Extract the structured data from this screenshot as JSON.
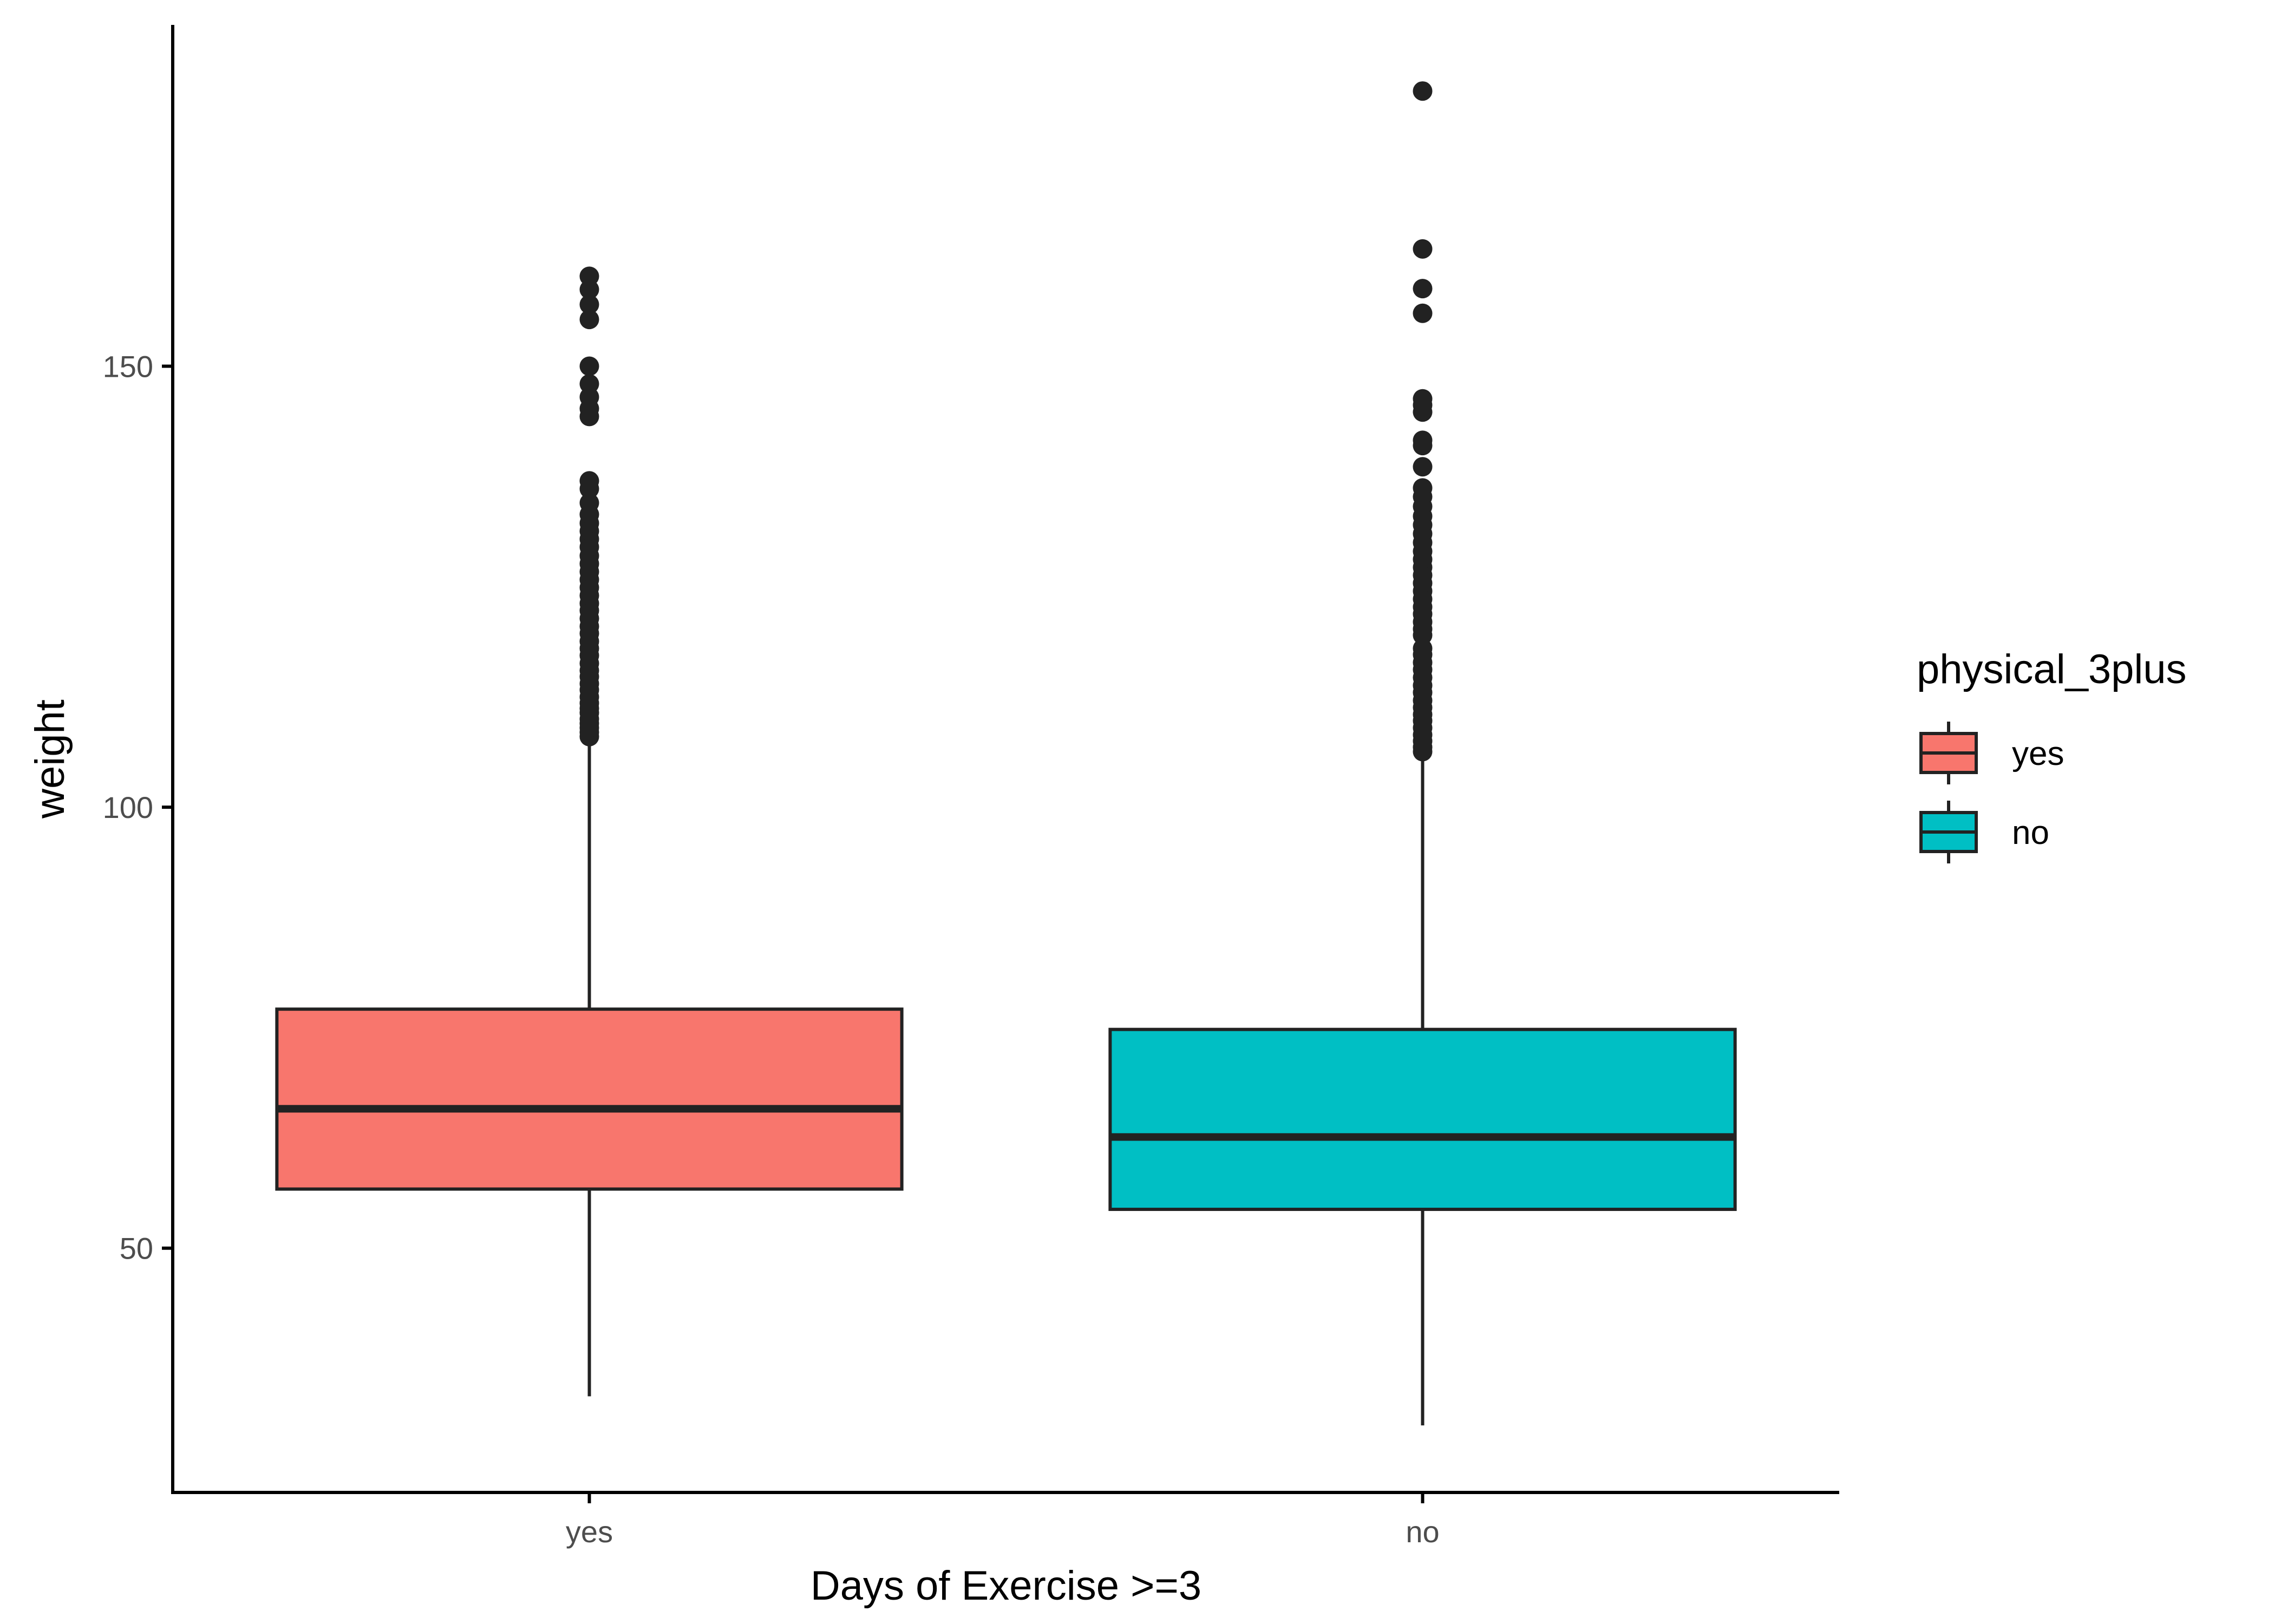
{
  "chart_data": {
    "type": "boxplot",
    "title": "",
    "xlabel": "Days of Exercise >=3",
    "ylabel": "weight",
    "ylim": [
      22.3,
      188.7
    ],
    "yticks": [
      50,
      100,
      150
    ],
    "grid": false,
    "legend_position": "right",
    "categories": [
      "yes",
      "no"
    ],
    "colors": {
      "yes": "#F8766D",
      "no": "#00BFC4",
      "outline": "#222222"
    },
    "legend": {
      "title": "physical_3plus",
      "items": [
        {
          "label": "yes",
          "color": "#F8766D"
        },
        {
          "label": "no",
          "color": "#00BFC4"
        }
      ]
    },
    "series": [
      {
        "name": "yes",
        "whisker_low": 33.2,
        "q1": 56.7,
        "median": 65.8,
        "q3": 77.1,
        "whisker_high": 107.5,
        "outliers": [
          108.0,
          108.5,
          109.0,
          109.5,
          110.0,
          110.7,
          111.2,
          111.8,
          112.5,
          113.3,
          114.0,
          114.8,
          115.5,
          116.3,
          117.2,
          118.0,
          118.8,
          119.7,
          120.5,
          121.4,
          122.3,
          123.1,
          124.0,
          124.9,
          125.8,
          126.7,
          127.6,
          128.5,
          129.5,
          130.4,
          131.3,
          132.2,
          133.2,
          134.5,
          136.1,
          137.0,
          144.3,
          145.2,
          146.5,
          148.0,
          150.0,
          155.3,
          157.0,
          158.7,
          160.2
        ]
      },
      {
        "name": "no",
        "whisker_low": 29.9,
        "q1": 54.4,
        "median": 62.6,
        "q3": 74.8,
        "whisker_high": 105.7,
        "outliers": [
          106.3,
          106.8,
          107.5,
          108.2,
          109.0,
          109.8,
          110.5,
          111.3,
          112.1,
          113.0,
          113.8,
          114.7,
          115.6,
          116.4,
          117.3,
          118.0,
          119.5,
          120.2,
          121.0,
          121.9,
          122.7,
          123.6,
          124.5,
          125.4,
          126.3,
          127.2,
          128.1,
          129.0,
          130.0,
          131.0,
          132.0,
          133.0,
          134.1,
          135.2,
          136.2,
          138.6,
          141.0,
          141.6,
          144.8,
          145.6,
          146.3,
          156.0,
          158.8,
          163.3,
          181.2
        ]
      }
    ]
  }
}
